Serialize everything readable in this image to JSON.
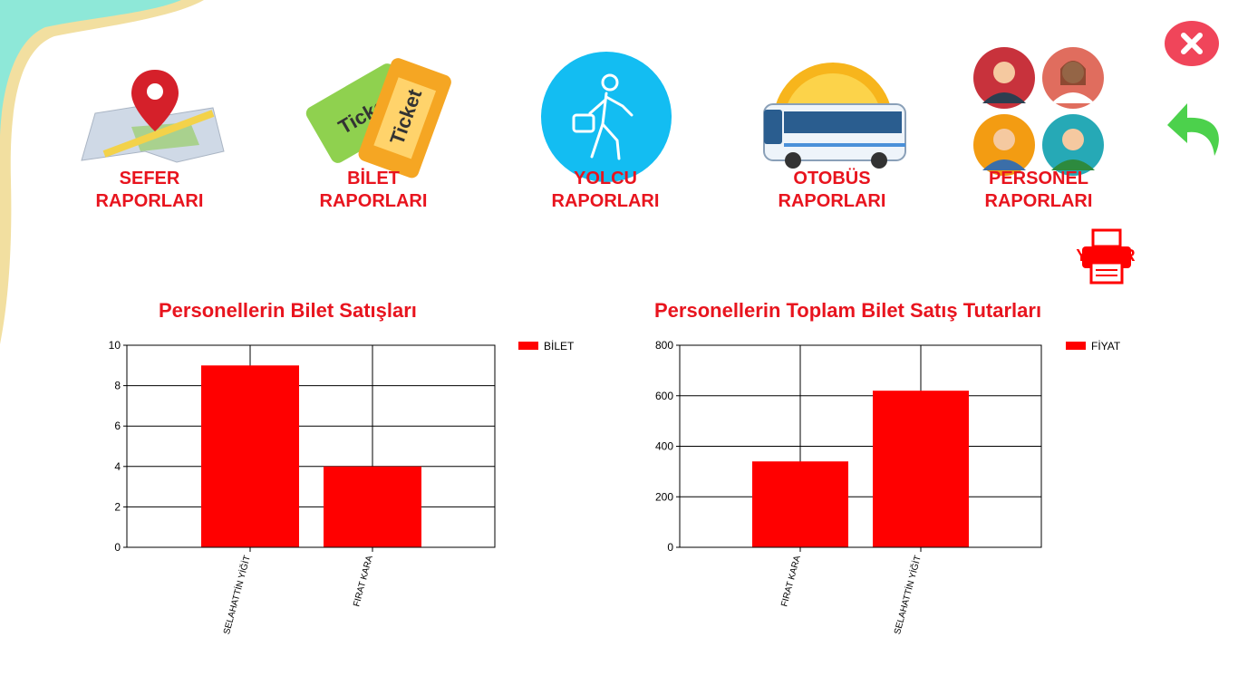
{
  "nav": {
    "items": [
      {
        "label": "SEFER\nRAPORLARI",
        "icon": "map-pin-icon"
      },
      {
        "label": "BİLET\nRAPORLARI",
        "icon": "ticket-icon"
      },
      {
        "label": "YOLCU\nRAPORLARI",
        "icon": "traveler-icon"
      },
      {
        "label": "OTOBÜS\nRAPORLARI",
        "icon": "bus-icon"
      },
      {
        "label": "PERSONEL\nRAPORLARI",
        "icon": "staff-avatars-icon"
      }
    ]
  },
  "ticket_text": "Ticket",
  "actions": {
    "close_icon": "close-icon",
    "back_icon": "back-arrow-icon",
    "print_label": "YAZDIR",
    "print_icon": "printer-icon"
  },
  "colors": {
    "accent": "#e8141e",
    "bar": "#ff0000",
    "close": "#f0455a",
    "back": "#4cd14c",
    "yolcu_circle": "#13bdf2"
  },
  "chart_data": [
    {
      "type": "bar",
      "title": "Personellerin Bilet Satışları",
      "categories": [
        "SELAHATTİN YİĞİT",
        "FIRAT KARA"
      ],
      "series": [
        {
          "name": "BİLET",
          "values": [
            9,
            4
          ]
        }
      ],
      "ylim": [
        0,
        10
      ],
      "yticks": [
        0,
        2,
        4,
        6,
        8,
        10
      ],
      "grid": true,
      "legend": "top-right"
    },
    {
      "type": "bar",
      "title": "Personellerin Toplam Bilet Satış Tutarları",
      "categories": [
        "FIRAT KARA",
        "SELAHATTİN YİĞİT"
      ],
      "series": [
        {
          "name": "FİYAT",
          "values": [
            340,
            620
          ]
        }
      ],
      "ylim": [
        0,
        800
      ],
      "yticks": [
        0,
        200,
        400,
        600,
        800
      ],
      "grid": true,
      "legend": "top-right"
    }
  ]
}
